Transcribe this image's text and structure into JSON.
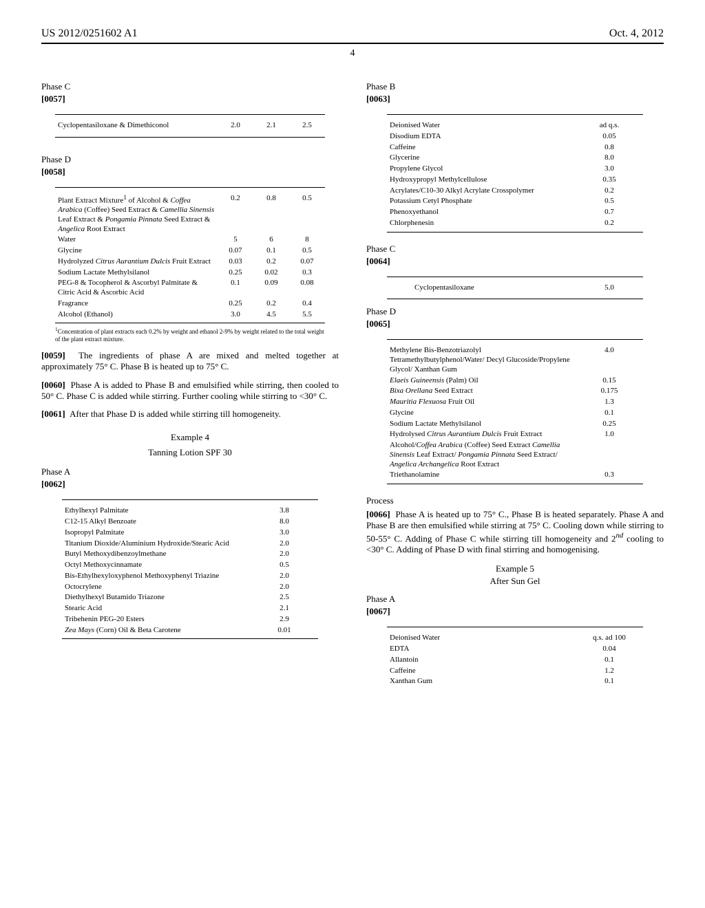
{
  "header": {
    "left": "US 2012/0251602 A1",
    "right": "Oct. 4, 2012"
  },
  "page_number": "4",
  "left_col": {
    "phaseC": {
      "title": "Phase C",
      "para": "[0057]",
      "rows": [
        {
          "name": "Cyclopentasiloxane & Dimethiconol",
          "v1": "2.0",
          "v2": "2.1",
          "v3": "2.5"
        }
      ]
    },
    "phaseD": {
      "title": "Phase D",
      "para": "[0058]",
      "rows": [
        {
          "name_html": "Plant Extract Mixture<sup>1</sup> of Alcohol &amp; <i>Coffea Arabica</i> (Coffee) Seed Extract &amp; <i>Camellia Sinensis</i> Leaf Extract &amp; <i>Pongamia Pinnata</i> Seed Extract &amp; <i>Angelica</i> Root Extract",
          "v1": "0.2",
          "v2": "0.8",
          "v3": "0.5"
        },
        {
          "name_html": "Water",
          "v1": "5",
          "v2": "6",
          "v3": "8"
        },
        {
          "name_html": "Glycine",
          "v1": "0.07",
          "v2": "0.1",
          "v3": "0.5"
        },
        {
          "name_html": "Hydrolyzed <i>Citrus Aurantium Dulcis</i> Fruit Extract",
          "v1": "0.03",
          "v2": "0.2",
          "v3": "0.07"
        },
        {
          "name_html": "Sodium Lactate Methylsilanol",
          "v1": "0.25",
          "v2": "0.02",
          "v3": "0.3"
        },
        {
          "name_html": "PEG-8 &amp; Tocopherol &amp; Ascorbyl Palmitate &amp; Citric Acid &amp; Ascorbic Acid",
          "v1": "0.1",
          "v2": "0.09",
          "v3": "0.08"
        },
        {
          "name_html": "Fragrance",
          "v1": "0.25",
          "v2": "0.2",
          "v3": "0.4"
        },
        {
          "name_html": "Alcohol (Ethanol)",
          "v1": "3.0",
          "v2": "4.5",
          "v3": "5.5"
        }
      ],
      "footnote_html": "<sup>1</sup>Concentration of plant extracts each 0.2% by weight and ethanol 2-9% by weight related to the total weight of the plant extract mixture."
    },
    "para59": {
      "num": "[0059]",
      "text": "The ingredients of phase A are mixed and melted together at approximately 75° C. Phase B is heated up to 75° C."
    },
    "para60": {
      "num": "[0060]",
      "text": "Phase A is added to Phase B and emulsified while stirring, then cooled to 50° C. Phase C is added while stirring. Further cooling while stirring to <30° C."
    },
    "para61": {
      "num": "[0061]",
      "text": "After that Phase D is added while stirring till homogeneity."
    },
    "example4": {
      "label": "Example 4",
      "sub": "Tanning Lotion SPF 30"
    },
    "phaseA": {
      "title": "Phase A",
      "para": "[0062]",
      "rows": [
        {
          "name_html": "Ethylhexyl Palmitate",
          "v": "3.8"
        },
        {
          "name_html": "C12-15 Alkyl Benzoate",
          "v": "8.0"
        },
        {
          "name_html": "Isopropyl Palmitate",
          "v": "3.0"
        },
        {
          "name_html": "Titanium Dioxide/Aluminium Hydroxide/Stearic Acid",
          "v": "2.0"
        },
        {
          "name_html": "Butyl Methoxydibenzoylmethane",
          "v": "2.0"
        },
        {
          "name_html": "Octyl Methoxycinnamate",
          "v": "0.5"
        },
        {
          "name_html": "Bis-Ethylhexyloxyphenol Methoxyphenyl Triazine",
          "v": "2.0"
        },
        {
          "name_html": "Octocrylene",
          "v": "2.0"
        },
        {
          "name_html": "Diethylhexyl Butamido Triazone",
          "v": "2.5"
        },
        {
          "name_html": "Stearic Acid",
          "v": "2.1"
        },
        {
          "name_html": "Tribehenin PEG-20 Esters",
          "v": "2.9"
        },
        {
          "name_html": "<i>Zea Mays</i> (Corn) Oil &amp; Beta Carotene",
          "v": "0.01"
        }
      ]
    }
  },
  "right_col": {
    "phaseB": {
      "title": "Phase B",
      "para": "[0063]",
      "rows": [
        {
          "name": "Deionised Water",
          "v": "ad q.s."
        },
        {
          "name": "Disodium EDTA",
          "v": "0.05"
        },
        {
          "name": "Caffeine",
          "v": "0.8"
        },
        {
          "name": "Glycerine",
          "v": "8.0"
        },
        {
          "name": "Propylene Glycol",
          "v": "3.0"
        },
        {
          "name": "Hydroxypropyl Methylcellulose",
          "v": "0.35"
        },
        {
          "name": "Acrylates/C10-30 Alkyl Acrylate Crosspolymer",
          "v": "0.2"
        },
        {
          "name": "Potassium Cetyl Phosphate",
          "v": "0.5"
        },
        {
          "name": "Phenoxyethanol",
          "v": "0.7"
        },
        {
          "name": "Chlorphenesin",
          "v": "0.2"
        }
      ]
    },
    "phaseC": {
      "title": "Phase C",
      "para": "[0064]",
      "rows": [
        {
          "name": "Cyclopentasiloxane",
          "v": "5.0"
        }
      ]
    },
    "phaseD": {
      "title": "Phase D",
      "para": "[0065]",
      "rows": [
        {
          "name_html": "Methylene Bis-Benzotriazolyl Tetramethylbutylphenol/Water/ Decyl Glucoside/Propylene Glycol/ Xanthan Gum",
          "v": "4.0"
        },
        {
          "name_html": "<i>Elaeis Guineensis</i> (Palm) Oil",
          "v": "0.15"
        },
        {
          "name_html": "<i>Bixa Orellana</i> Seed Extract",
          "v": "0.175"
        },
        {
          "name_html": "<i>Mauritia Flexuosa</i> Fruit Oil",
          "v": "1.3"
        },
        {
          "name_html": "Glycine",
          "v": "0.1"
        },
        {
          "name_html": "Sodium Lactate Methylsilanol",
          "v": "0.25"
        },
        {
          "name_html": "Hydrolysed <i>Citrus Aurantium Dulcis</i> Fruit Extract",
          "v": "1.0"
        },
        {
          "name_html": "Alcohol/<i>Coffea Arabica</i> (Coffee) Seed Extract <i>Camellia Sinensis</i> Leaf Extract/ <i>Pongamia Pinnata</i> Seed Extract/ <i>Angelica Archangelica</i> Root Extract",
          "v": ""
        },
        {
          "name_html": "Triethanolamine",
          "v": "0.3"
        }
      ]
    },
    "process": {
      "title": "Process",
      "num": "[0066]",
      "text_html": "Phase A is heated up to 75° C., Phase B is heated separately. Phase A and Phase B are then emulsified while stirring at 75° C. Cooling down while stirring to 50-55° C. Adding of Phase C while stirring till homogeneity and 2<i><sup>nd</sup></i> cooling to &lt;30° C. Adding of Phase D with final stirring and homogenising."
    },
    "example5": {
      "label": "Example 5",
      "sub": "After Sun Gel"
    },
    "phaseA5": {
      "title": "Phase A",
      "para": "[0067]",
      "rows": [
        {
          "name": "Deionised Water",
          "v": "q.s. ad 100"
        },
        {
          "name": "EDTA",
          "v": "0.04"
        },
        {
          "name": "Allantoin",
          "v": "0.1"
        },
        {
          "name": "Caffeine",
          "v": "1.2"
        },
        {
          "name": "Xanthan Gum",
          "v": "0.1"
        }
      ]
    }
  }
}
